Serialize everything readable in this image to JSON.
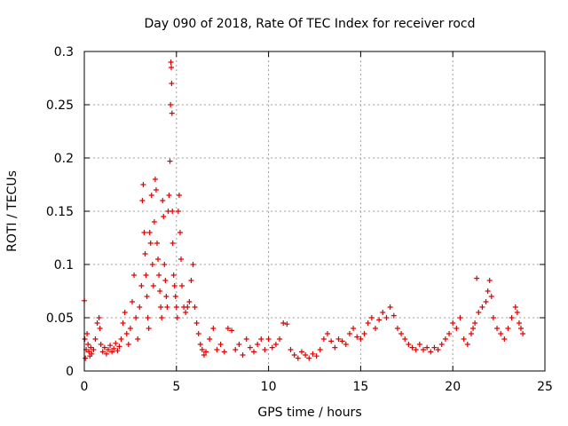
{
  "chart_data": {
    "type": "scatter",
    "title": "Day 090 of 2018, Rate Of TEC Index for receiver rocd",
    "xlabel": "GPS time / hours",
    "ylabel": "ROTI / TECUs",
    "xlim": [
      0,
      25
    ],
    "ylim": [
      0,
      0.3
    ],
    "xticks": [
      0,
      5,
      10,
      15,
      20,
      25
    ],
    "yticks": [
      0,
      0.05,
      0.1,
      0.15,
      0.2,
      0.25,
      0.3
    ],
    "grid": true,
    "marker": "+",
    "colors": {
      "series": "#e00000",
      "grid": "#a0a0a0",
      "axis": "#000000"
    },
    "series": [
      {
        "name": "ROTI",
        "points": [
          [
            0.0,
            0.066
          ],
          [
            0.03,
            0.03
          ],
          [
            0.06,
            0.012
          ],
          [
            0.1,
            0.02
          ],
          [
            0.15,
            0.035
          ],
          [
            0.2,
            0.025
          ],
          [
            0.25,
            0.018
          ],
          [
            0.3,
            0.014
          ],
          [
            0.35,
            0.022
          ],
          [
            0.4,
            0.016
          ],
          [
            0.5,
            0.02
          ],
          [
            0.6,
            0.03
          ],
          [
            0.7,
            0.045
          ],
          [
            0.8,
            0.05
          ],
          [
            0.85,
            0.04
          ],
          [
            0.9,
            0.025
          ],
          [
            1.0,
            0.018
          ],
          [
            1.1,
            0.022
          ],
          [
            1.2,
            0.016
          ],
          [
            1.3,
            0.02
          ],
          [
            1.4,
            0.024
          ],
          [
            1.5,
            0.018
          ],
          [
            1.6,
            0.021
          ],
          [
            1.7,
            0.026
          ],
          [
            1.8,
            0.019
          ],
          [
            1.9,
            0.023
          ],
          [
            2.0,
            0.03
          ],
          [
            2.1,
            0.045
          ],
          [
            2.2,
            0.055
          ],
          [
            2.3,
            0.035
          ],
          [
            2.4,
            0.025
          ],
          [
            2.5,
            0.04
          ],
          [
            2.6,
            0.065
          ],
          [
            2.7,
            0.09
          ],
          [
            2.8,
            0.05
          ],
          [
            2.9,
            0.03
          ],
          [
            3.0,
            0.06
          ],
          [
            3.1,
            0.08
          ],
          [
            3.15,
            0.16
          ],
          [
            3.2,
            0.175
          ],
          [
            3.25,
            0.13
          ],
          [
            3.3,
            0.11
          ],
          [
            3.35,
            0.09
          ],
          [
            3.4,
            0.07
          ],
          [
            3.45,
            0.05
          ],
          [
            3.5,
            0.04
          ],
          [
            3.55,
            0.13
          ],
          [
            3.6,
            0.12
          ],
          [
            3.65,
            0.165
          ],
          [
            3.7,
            0.1
          ],
          [
            3.75,
            0.08
          ],
          [
            3.8,
            0.14
          ],
          [
            3.85,
            0.18
          ],
          [
            3.9,
            0.17
          ],
          [
            3.95,
            0.12
          ],
          [
            4.0,
            0.105
          ],
          [
            4.05,
            0.09
          ],
          [
            4.1,
            0.075
          ],
          [
            4.15,
            0.06
          ],
          [
            4.2,
            0.05
          ],
          [
            4.25,
            0.16
          ],
          [
            4.3,
            0.145
          ],
          [
            4.35,
            0.1
          ],
          [
            4.4,
            0.085
          ],
          [
            4.45,
            0.07
          ],
          [
            4.5,
            0.06
          ],
          [
            4.55,
            0.15
          ],
          [
            4.6,
            0.165
          ],
          [
            4.65,
            0.197
          ],
          [
            4.68,
            0.25
          ],
          [
            4.7,
            0.29
          ],
          [
            4.72,
            0.285
          ],
          [
            4.74,
            0.27
          ],
          [
            4.76,
            0.242
          ],
          [
            4.78,
            0.15
          ],
          [
            4.8,
            0.12
          ],
          [
            4.85,
            0.09
          ],
          [
            4.9,
            0.08
          ],
          [
            4.95,
            0.07
          ],
          [
            5.0,
            0.06
          ],
          [
            5.05,
            0.05
          ],
          [
            5.1,
            0.15
          ],
          [
            5.15,
            0.165
          ],
          [
            5.2,
            0.13
          ],
          [
            5.25,
            0.105
          ],
          [
            5.3,
            0.08
          ],
          [
            5.4,
            0.06
          ],
          [
            5.5,
            0.055
          ],
          [
            5.6,
            0.06
          ],
          [
            5.7,
            0.065
          ],
          [
            5.8,
            0.085
          ],
          [
            5.9,
            0.1
          ],
          [
            6.0,
            0.06
          ],
          [
            6.1,
            0.045
          ],
          [
            6.2,
            0.035
          ],
          [
            6.3,
            0.025
          ],
          [
            6.4,
            0.02
          ],
          [
            6.5,
            0.015
          ],
          [
            6.6,
            0.018
          ],
          [
            6.8,
            0.03
          ],
          [
            7.0,
            0.04
          ],
          [
            7.2,
            0.02
          ],
          [
            7.4,
            0.025
          ],
          [
            7.6,
            0.018
          ],
          [
            7.8,
            0.04
          ],
          [
            8.0,
            0.038
          ],
          [
            8.2,
            0.02
          ],
          [
            8.4,
            0.025
          ],
          [
            8.6,
            0.015
          ],
          [
            8.8,
            0.03
          ],
          [
            9.0,
            0.022
          ],
          [
            9.2,
            0.018
          ],
          [
            9.4,
            0.025
          ],
          [
            9.6,
            0.03
          ],
          [
            9.8,
            0.02
          ],
          [
            10.0,
            0.03
          ],
          [
            10.2,
            0.022
          ],
          [
            10.4,
            0.025
          ],
          [
            10.6,
            0.03
          ],
          [
            10.8,
            0.045
          ],
          [
            11.0,
            0.044
          ],
          [
            11.2,
            0.02
          ],
          [
            11.4,
            0.015
          ],
          [
            11.6,
            0.012
          ],
          [
            11.8,
            0.018
          ],
          [
            12.0,
            0.015
          ],
          [
            12.2,
            0.012
          ],
          [
            12.4,
            0.016
          ],
          [
            12.6,
            0.014
          ],
          [
            12.8,
            0.02
          ],
          [
            13.0,
            0.03
          ],
          [
            13.2,
            0.035
          ],
          [
            13.4,
            0.028
          ],
          [
            13.6,
            0.022
          ],
          [
            13.8,
            0.03
          ],
          [
            14.0,
            0.028
          ],
          [
            14.2,
            0.025
          ],
          [
            14.4,
            0.035
          ],
          [
            14.6,
            0.04
          ],
          [
            14.8,
            0.032
          ],
          [
            15.0,
            0.03
          ],
          [
            15.2,
            0.035
          ],
          [
            15.4,
            0.045
          ],
          [
            15.6,
            0.05
          ],
          [
            15.8,
            0.04
          ],
          [
            16.0,
            0.048
          ],
          [
            16.2,
            0.055
          ],
          [
            16.4,
            0.05
          ],
          [
            16.6,
            0.06
          ],
          [
            16.8,
            0.052
          ],
          [
            17.0,
            0.04
          ],
          [
            17.2,
            0.035
          ],
          [
            17.4,
            0.03
          ],
          [
            17.6,
            0.025
          ],
          [
            17.8,
            0.022
          ],
          [
            18.0,
            0.02
          ],
          [
            18.2,
            0.025
          ],
          [
            18.4,
            0.02
          ],
          [
            18.6,
            0.022
          ],
          [
            18.8,
            0.018
          ],
          [
            19.0,
            0.022
          ],
          [
            19.2,
            0.02
          ],
          [
            19.4,
            0.025
          ],
          [
            19.6,
            0.03
          ],
          [
            19.8,
            0.035
          ],
          [
            20.0,
            0.045
          ],
          [
            20.2,
            0.04
          ],
          [
            20.4,
            0.05
          ],
          [
            20.6,
            0.03
          ],
          [
            20.8,
            0.025
          ],
          [
            21.0,
            0.035
          ],
          [
            21.1,
            0.04
          ],
          [
            21.2,
            0.045
          ],
          [
            21.3,
            0.087
          ],
          [
            21.4,
            0.055
          ],
          [
            21.6,
            0.06
          ],
          [
            21.8,
            0.065
          ],
          [
            21.9,
            0.075
          ],
          [
            22.0,
            0.085
          ],
          [
            22.1,
            0.07
          ],
          [
            22.2,
            0.05
          ],
          [
            22.4,
            0.04
          ],
          [
            22.6,
            0.035
          ],
          [
            22.8,
            0.03
          ],
          [
            23.0,
            0.04
          ],
          [
            23.2,
            0.05
          ],
          [
            23.4,
            0.06
          ],
          [
            23.5,
            0.055
          ],
          [
            23.6,
            0.045
          ],
          [
            23.7,
            0.04
          ],
          [
            23.8,
            0.035
          ]
        ]
      }
    ]
  }
}
